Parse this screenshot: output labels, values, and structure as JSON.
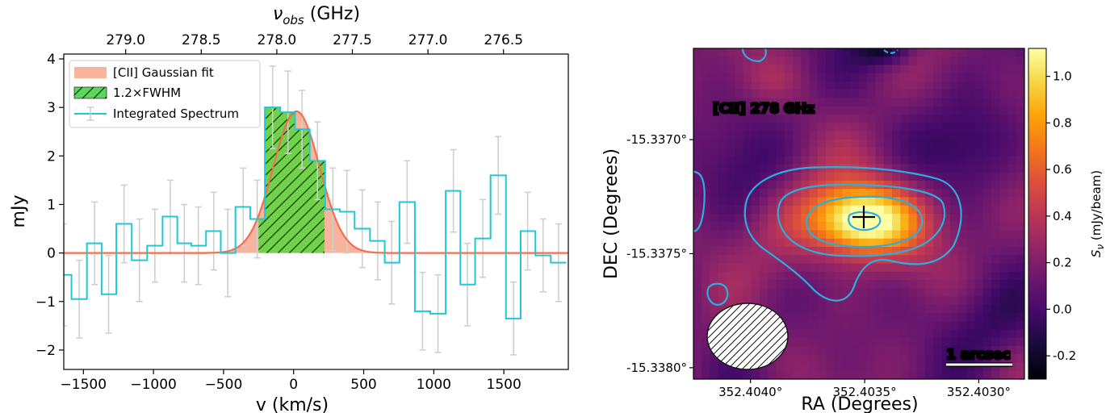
{
  "chart_data": [
    {
      "type": "line",
      "xlabel": "v (km/s)",
      "ylabel": "mJy",
      "top_xlabel": "ν_obs (GHz)",
      "top_xlabel_main": "ν",
      "top_xlabel_sub": "obs",
      "top_xlabel_unit": " (GHz)",
      "xlim": [
        -1640,
        1960
      ],
      "ylim": [
        -2.4,
        4.1
      ],
      "xticks": [
        -1500,
        -1000,
        -500,
        0,
        500,
        1000,
        1500
      ],
      "xtick_labels": [
        "−1500",
        "−1000",
        "−500",
        "0",
        "500",
        "1000",
        "1500"
      ],
      "yticks": [
        -2,
        -1,
        0,
        1,
        2,
        3,
        4
      ],
      "ytick_labels": [
        "−2",
        "−1",
        "0",
        "1",
        "2",
        "3",
        "4"
      ],
      "top_ticks_ghz": [
        279.0,
        278.5,
        278.0,
        277.5,
        277.0,
        276.5
      ],
      "top_tick_labels": [
        "279.0",
        "278.5",
        "278.0",
        "277.5",
        "277.0",
        "276.5"
      ],
      "legend_position": "top-left",
      "legend": [
        {
          "label": "[CII] Gaussian fit",
          "color": "#f9b49d"
        },
        {
          "label": "1.2×FWHM",
          "color": "#5cd65c"
        },
        {
          "label": "Integrated Spectrum",
          "color": "#22c7d6"
        }
      ],
      "series": [
        {
          "name": "Integrated Spectrum",
          "style": "steps-mid",
          "color": "#22c7d6",
          "x": [
            -1640,
            -1530,
            -1420,
            -1320,
            -1210,
            -1100,
            -990,
            -880,
            -780,
            -680,
            -570,
            -470,
            -360,
            -260,
            -150,
            -40,
            60,
            170,
            280,
            380,
            490,
            600,
            700,
            810,
            920,
            1030,
            1140,
            1240,
            1350,
            1460,
            1570,
            1670,
            1780,
            1890
          ],
          "y": [
            -0.45,
            -0.95,
            0.2,
            -0.85,
            0.6,
            -0.15,
            0.15,
            0.75,
            0.2,
            0.15,
            0.45,
            0.0,
            0.95,
            0.7,
            3.0,
            2.9,
            2.55,
            1.9,
            0.9,
            0.85,
            0.5,
            0.25,
            -0.2,
            1.05,
            -1.2,
            -1.25,
            1.28,
            -0.65,
            0.3,
            1.6,
            -1.35,
            0.45,
            -0.05,
            -0.2
          ],
          "yerr": [
            1.05,
            0.8,
            0.85,
            0.8,
            0.8,
            0.85,
            0.75,
            0.75,
            0.8,
            0.8,
            0.8,
            0.9,
            0.8,
            0.8,
            0.85,
            0.85,
            0.8,
            0.8,
            0.85,
            0.85,
            0.8,
            0.8,
            0.85,
            0.85,
            0.8,
            0.8,
            0.85,
            0.85,
            0.8,
            0.8,
            0.75,
            0.8,
            0.75,
            0.8
          ]
        },
        {
          "name": "[CII] Gaussian fit",
          "color": "#f26f4f",
          "amplitude": 2.92,
          "center": 20,
          "fwhm": 390
        }
      ],
      "shaded_region": {
        "label": "1.2×FWHM",
        "x": [
          -250,
          220
        ]
      }
    },
    {
      "type": "heatmap",
      "xlabel": "RA (Degrees)",
      "ylabel": "DEC (Degrees)",
      "colorbar_label": "S_ν (mJy/beam)",
      "colorbar_label_main": "S",
      "colorbar_label_sub": "ν",
      "colorbar_label_unit": " (mJy/beam)",
      "colormap": "inferno",
      "color_range": [
        -0.3,
        1.12
      ],
      "colorbar_ticks": [
        1.0,
        0.8,
        0.6,
        0.4,
        0.2,
        0.0,
        -0.2
      ],
      "colorbar_tick_labels": [
        "1.0",
        "0.8",
        "0.6",
        "0.4",
        "0.2",
        "0.0",
        "-0.2"
      ],
      "xlim": [
        352.40425,
        352.4028
      ],
      "ylim": [
        -15.33805,
        -15.3366
      ],
      "xticks": [
        352.404,
        352.4035,
        352.403
      ],
      "xtick_labels": [
        "352.4040°",
        "352.4035°",
        "352.4030°"
      ],
      "yticks": [
        -15.337,
        -15.3375,
        -15.338
      ],
      "ytick_labels": [
        "-15.3370°",
        "-15.3375°",
        "-15.3380°"
      ],
      "annotation": "[CII] 278 GHz",
      "scale_bar_label": "1 arcsec",
      "contour_color": "#2aaee0",
      "marker_position": [
        352.40348,
        -15.33737
      ]
    }
  ]
}
